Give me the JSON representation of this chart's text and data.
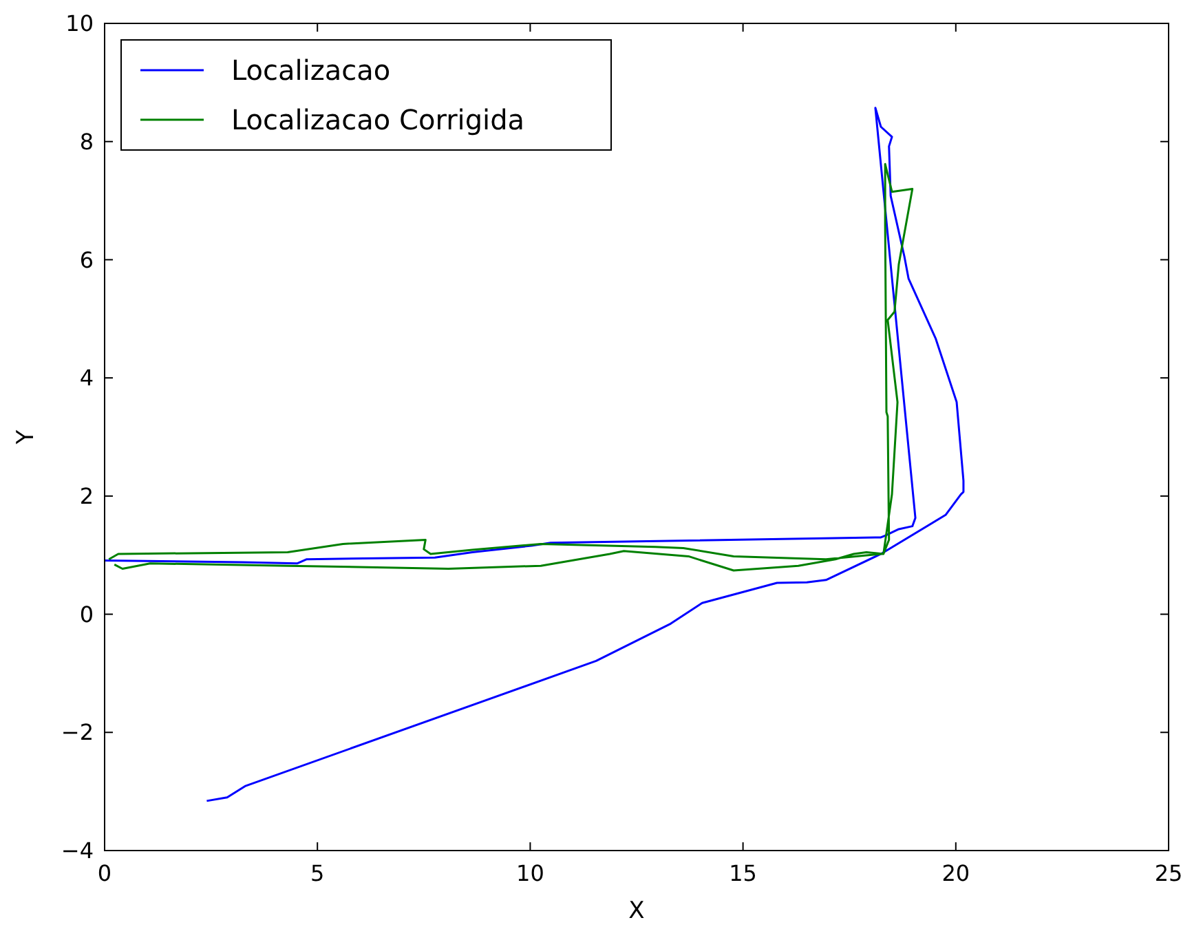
{
  "chart_data": {
    "type": "line",
    "xlabel": "X",
    "ylabel": "Y",
    "xlim": [
      0,
      25
    ],
    "ylim": [
      -4,
      10
    ],
    "xticks": [
      0,
      5,
      10,
      15,
      20,
      25
    ],
    "yticks": [
      -4,
      -2,
      0,
      2,
      4,
      6,
      8,
      10
    ],
    "legend": "top left",
    "grid": false,
    "marker": "none",
    "line_style": "solid",
    "series": [
      {
        "name": "Localizacao",
        "color": "#0000ff",
        "x": [
          2.4,
          2.88,
          3.3,
          11.55,
          13.3,
          14.04,
          15.8,
          16.5,
          16.95,
          18.24,
          19.76,
          20.12,
          20.18,
          20.18,
          20.02,
          19.53,
          18.89,
          18.79,
          18.47,
          18.43,
          18.5,
          18.24,
          18.11,
          19.05,
          18.98,
          18.66,
          18.34,
          18.24,
          10.48,
          10.03,
          8.64,
          7.76,
          4.75,
          4.53,
          3.23,
          0
        ],
        "values": [
          -3.16,
          -3.1,
          -2.91,
          -0.79,
          -0.16,
          0.19,
          0.53,
          0.54,
          0.58,
          1.02,
          1.68,
          2.03,
          2.07,
          2.26,
          3.59,
          4.66,
          5.68,
          6.06,
          7.08,
          7.92,
          8.08,
          8.25,
          8.57,
          1.63,
          1.49,
          1.44,
          1.33,
          1.3,
          1.21,
          1.16,
          1.05,
          0.96,
          0.93,
          0.86,
          0.88,
          0.91
        ]
      },
      {
        "name": "Localizacao Corrigida",
        "color": "#008000",
        "x": [
          0.23,
          0.42,
          1.07,
          4.3,
          8.08,
          10.25,
          11.87,
          12.2,
          13.72,
          14.78,
          16.3,
          17.17,
          17.6,
          17.9,
          18.3,
          18.5,
          18.63,
          18.4,
          18.56,
          18.66,
          18.98,
          18.5,
          18.34,
          18.34,
          18.34,
          18.37,
          18.4,
          18.43,
          18.3,
          18.24,
          16.95,
          14.78,
          13.6,
          12.94,
          10.25,
          8.64,
          7.66,
          7.5,
          7.54,
          5.6,
          4.3,
          0.32,
          0.1
        ],
        "values": [
          0.84,
          0.77,
          0.86,
          0.82,
          0.77,
          0.82,
          1.02,
          1.07,
          0.98,
          0.74,
          0.82,
          0.93,
          1.02,
          1.05,
          1.02,
          2.03,
          3.59,
          4.98,
          5.12,
          5.92,
          7.2,
          7.15,
          7.62,
          6.69,
          6.6,
          3.42,
          3.35,
          1.26,
          1.02,
          1.02,
          0.93,
          0.98,
          1.12,
          1.14,
          1.19,
          1.09,
          1.02,
          1.1,
          1.26,
          1.19,
          1.05,
          1.02,
          0.93
        ]
      }
    ]
  }
}
